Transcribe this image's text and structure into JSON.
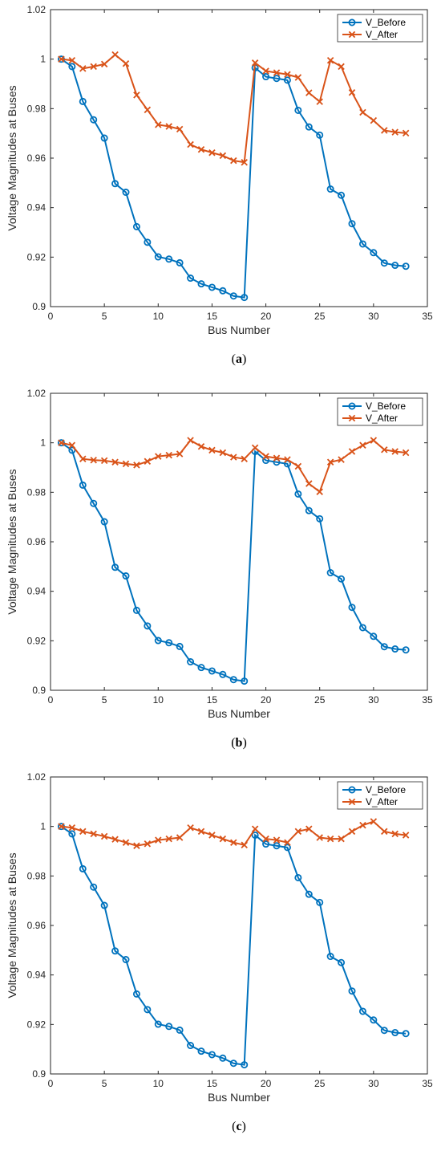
{
  "chart_data": [
    {
      "type": "line",
      "caption": "(a)",
      "caption_letter": "a",
      "xlabel": "Bus Number",
      "ylabel": "Voltage Magnitudes at Buses",
      "xlim": [
        0,
        35
      ],
      "ylim": [
        0.9,
        1.02
      ],
      "xticks": [
        "0",
        "5",
        "10",
        "15",
        "20",
        "25",
        "30",
        "35"
      ],
      "yticks": [
        "0.9",
        "0.92",
        "0.94",
        "0.96",
        "0.98",
        "1",
        "1.02"
      ],
      "legend_position": "top-right",
      "grid": false,
      "x": [
        1,
        2,
        3,
        4,
        5,
        6,
        7,
        8,
        9,
        10,
        11,
        12,
        13,
        14,
        15,
        16,
        17,
        18,
        19,
        20,
        21,
        22,
        23,
        24,
        25,
        26,
        27,
        28,
        29,
        30,
        31,
        32,
        33
      ],
      "series": [
        {
          "name": "V_Before",
          "color": "#0072BD",
          "marker": "circle",
          "values": [
            1.0,
            0.997,
            0.9829,
            0.9755,
            0.9681,
            0.9497,
            0.9462,
            0.9323,
            0.926,
            0.9201,
            0.9192,
            0.9177,
            0.9115,
            0.9092,
            0.9078,
            0.9064,
            0.9043,
            0.9037,
            0.9965,
            0.9929,
            0.9922,
            0.9915,
            0.9793,
            0.9726,
            0.9693,
            0.9475,
            0.945,
            0.9335,
            0.9253,
            0.9218,
            0.9176,
            0.9167,
            0.9163
          ]
        },
        {
          "name": "V_After",
          "color": "#D95319",
          "marker": "x",
          "values": [
            1.0,
            0.9995,
            0.9962,
            0.997,
            0.998,
            1.0018,
            0.9982,
            0.9855,
            0.9795,
            0.9735,
            0.9728,
            0.9717,
            0.9655,
            0.9635,
            0.9622,
            0.961,
            0.959,
            0.9583,
            0.9985,
            0.9952,
            0.9945,
            0.9938,
            0.9926,
            0.9864,
            0.9828,
            0.9995,
            0.997,
            0.9865,
            0.9785,
            0.9752,
            0.9712,
            0.9705,
            0.9701
          ]
        }
      ]
    },
    {
      "type": "line",
      "caption": "(b)",
      "caption_letter": "b",
      "xlabel": "Bus Number",
      "ylabel": "Voltage Magnitudes at Buses",
      "xlim": [
        0,
        35
      ],
      "ylim": [
        0.9,
        1.02
      ],
      "xticks": [
        "0",
        "5",
        "10",
        "15",
        "20",
        "25",
        "30",
        "35"
      ],
      "yticks": [
        "0.9",
        "0.92",
        "0.94",
        "0.96",
        "0.98",
        "1",
        "1.02"
      ],
      "legend_position": "top-right",
      "grid": false,
      "x": [
        1,
        2,
        3,
        4,
        5,
        6,
        7,
        8,
        9,
        10,
        11,
        12,
        13,
        14,
        15,
        16,
        17,
        18,
        19,
        20,
        21,
        22,
        23,
        24,
        25,
        26,
        27,
        28,
        29,
        30,
        31,
        32,
        33
      ],
      "series": [
        {
          "name": "V_Before",
          "color": "#0072BD",
          "marker": "circle",
          "values": [
            1.0,
            0.997,
            0.9829,
            0.9755,
            0.9681,
            0.9497,
            0.9462,
            0.9323,
            0.926,
            0.9201,
            0.9192,
            0.9177,
            0.9115,
            0.9092,
            0.9078,
            0.9064,
            0.9043,
            0.9037,
            0.9965,
            0.9929,
            0.9922,
            0.9915,
            0.9793,
            0.9726,
            0.9693,
            0.9475,
            0.945,
            0.9335,
            0.9253,
            0.9218,
            0.9176,
            0.9167,
            0.9163
          ]
        },
        {
          "name": "V_After",
          "color": "#D95319",
          "marker": "x",
          "values": [
            1.0,
            0.999,
            0.9935,
            0.993,
            0.9928,
            0.9922,
            0.9915,
            0.991,
            0.9925,
            0.9945,
            0.995,
            0.9955,
            1.001,
            0.9985,
            0.997,
            0.996,
            0.9942,
            0.9935,
            0.998,
            0.9945,
            0.9938,
            0.9932,
            0.9905,
            0.9835,
            0.9802,
            0.9922,
            0.9932,
            0.9965,
            0.999,
            1.001,
            0.9972,
            0.9965,
            0.996
          ]
        }
      ]
    },
    {
      "type": "line",
      "caption": "(c)",
      "caption_letter": "c",
      "xlabel": "Bus Number",
      "ylabel": "Voltage Magnitudes at Buses",
      "xlim": [
        0,
        35
      ],
      "ylim": [
        0.9,
        1.02
      ],
      "xticks": [
        "0",
        "5",
        "10",
        "15",
        "20",
        "25",
        "30",
        "35"
      ],
      "yticks": [
        "0.9",
        "0.92",
        "0.94",
        "0.96",
        "0.98",
        "1",
        "1.02"
      ],
      "legend_position": "top-right",
      "grid": false,
      "x": [
        1,
        2,
        3,
        4,
        5,
        6,
        7,
        8,
        9,
        10,
        11,
        12,
        13,
        14,
        15,
        16,
        17,
        18,
        19,
        20,
        21,
        22,
        23,
        24,
        25,
        26,
        27,
        28,
        29,
        30,
        31,
        32,
        33
      ],
      "series": [
        {
          "name": "V_Before",
          "color": "#0072BD",
          "marker": "circle",
          "values": [
            1.0,
            0.997,
            0.9829,
            0.9755,
            0.9681,
            0.9497,
            0.9462,
            0.9323,
            0.926,
            0.9201,
            0.9192,
            0.9177,
            0.9115,
            0.9092,
            0.9078,
            0.9064,
            0.9043,
            0.9037,
            0.9965,
            0.9929,
            0.9922,
            0.9915,
            0.9793,
            0.9726,
            0.9693,
            0.9475,
            0.945,
            0.9335,
            0.9253,
            0.9218,
            0.9176,
            0.9167,
            0.9163
          ]
        },
        {
          "name": "V_After",
          "color": "#D95319",
          "marker": "x",
          "values": [
            1.0,
            0.9995,
            0.998,
            0.997,
            0.996,
            0.9948,
            0.9935,
            0.9922,
            0.993,
            0.9945,
            0.995,
            0.9955,
            0.9995,
            0.998,
            0.9965,
            0.995,
            0.9935,
            0.9925,
            0.999,
            0.995,
            0.9945,
            0.9935,
            0.998,
            0.999,
            0.9955,
            0.995,
            0.995,
            0.998,
            1.0005,
            1.002,
            0.998,
            0.997,
            0.9965
          ]
        }
      ]
    }
  ]
}
